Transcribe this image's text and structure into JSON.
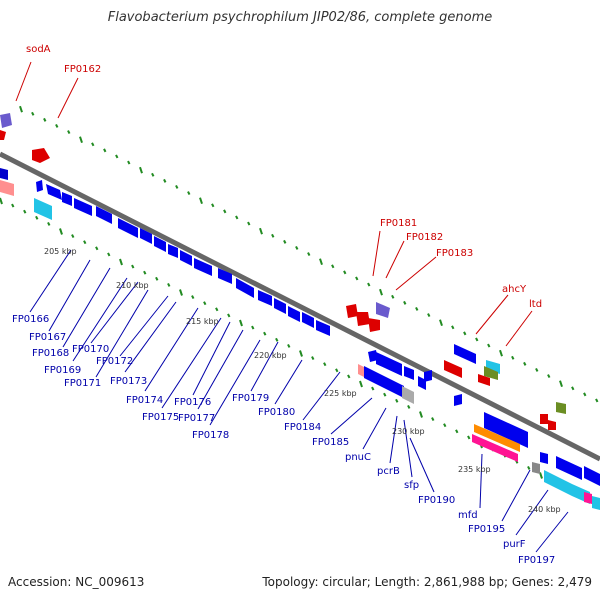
{
  "header": {
    "title": "Flavobacterium psychrophilum JIP02/86, complete genome"
  },
  "footer": {
    "accession": "Accession: NC_009613",
    "summary": "Topology: circular; Length: 2,861,988 bp; Genes: 2,479"
  },
  "colors": {
    "backbone": "#888888",
    "label_top": "#cc0000",
    "label_bottom": "#0000aa",
    "tick": "#228b22"
  },
  "scale_labels": [
    "205 kbp",
    "210 kbp",
    "215 kbp",
    "220 kbp",
    "225 kbp",
    "230 kbp",
    "235 kbp",
    "240 kbp"
  ],
  "genes_top": [
    "sodA",
    "FP0162",
    "FP0181",
    "FP0182",
    "FP0183",
    "ahcY",
    "ltd"
  ],
  "genes_bottom": [
    "FP0166",
    "FP0167",
    "FP0168",
    "FP0169",
    "FP0170",
    "FP0171",
    "FP0172",
    "FP0173",
    "FP0174",
    "FP0175",
    "FP0176",
    "FP0177",
    "FP0178",
    "FP0179",
    "FP0180",
    "FP0184",
    "FP0185",
    "pnuC",
    "pcrB",
    "sfp",
    "FP0190",
    "mfd",
    "FP0195",
    "purF",
    "FP0197"
  ]
}
